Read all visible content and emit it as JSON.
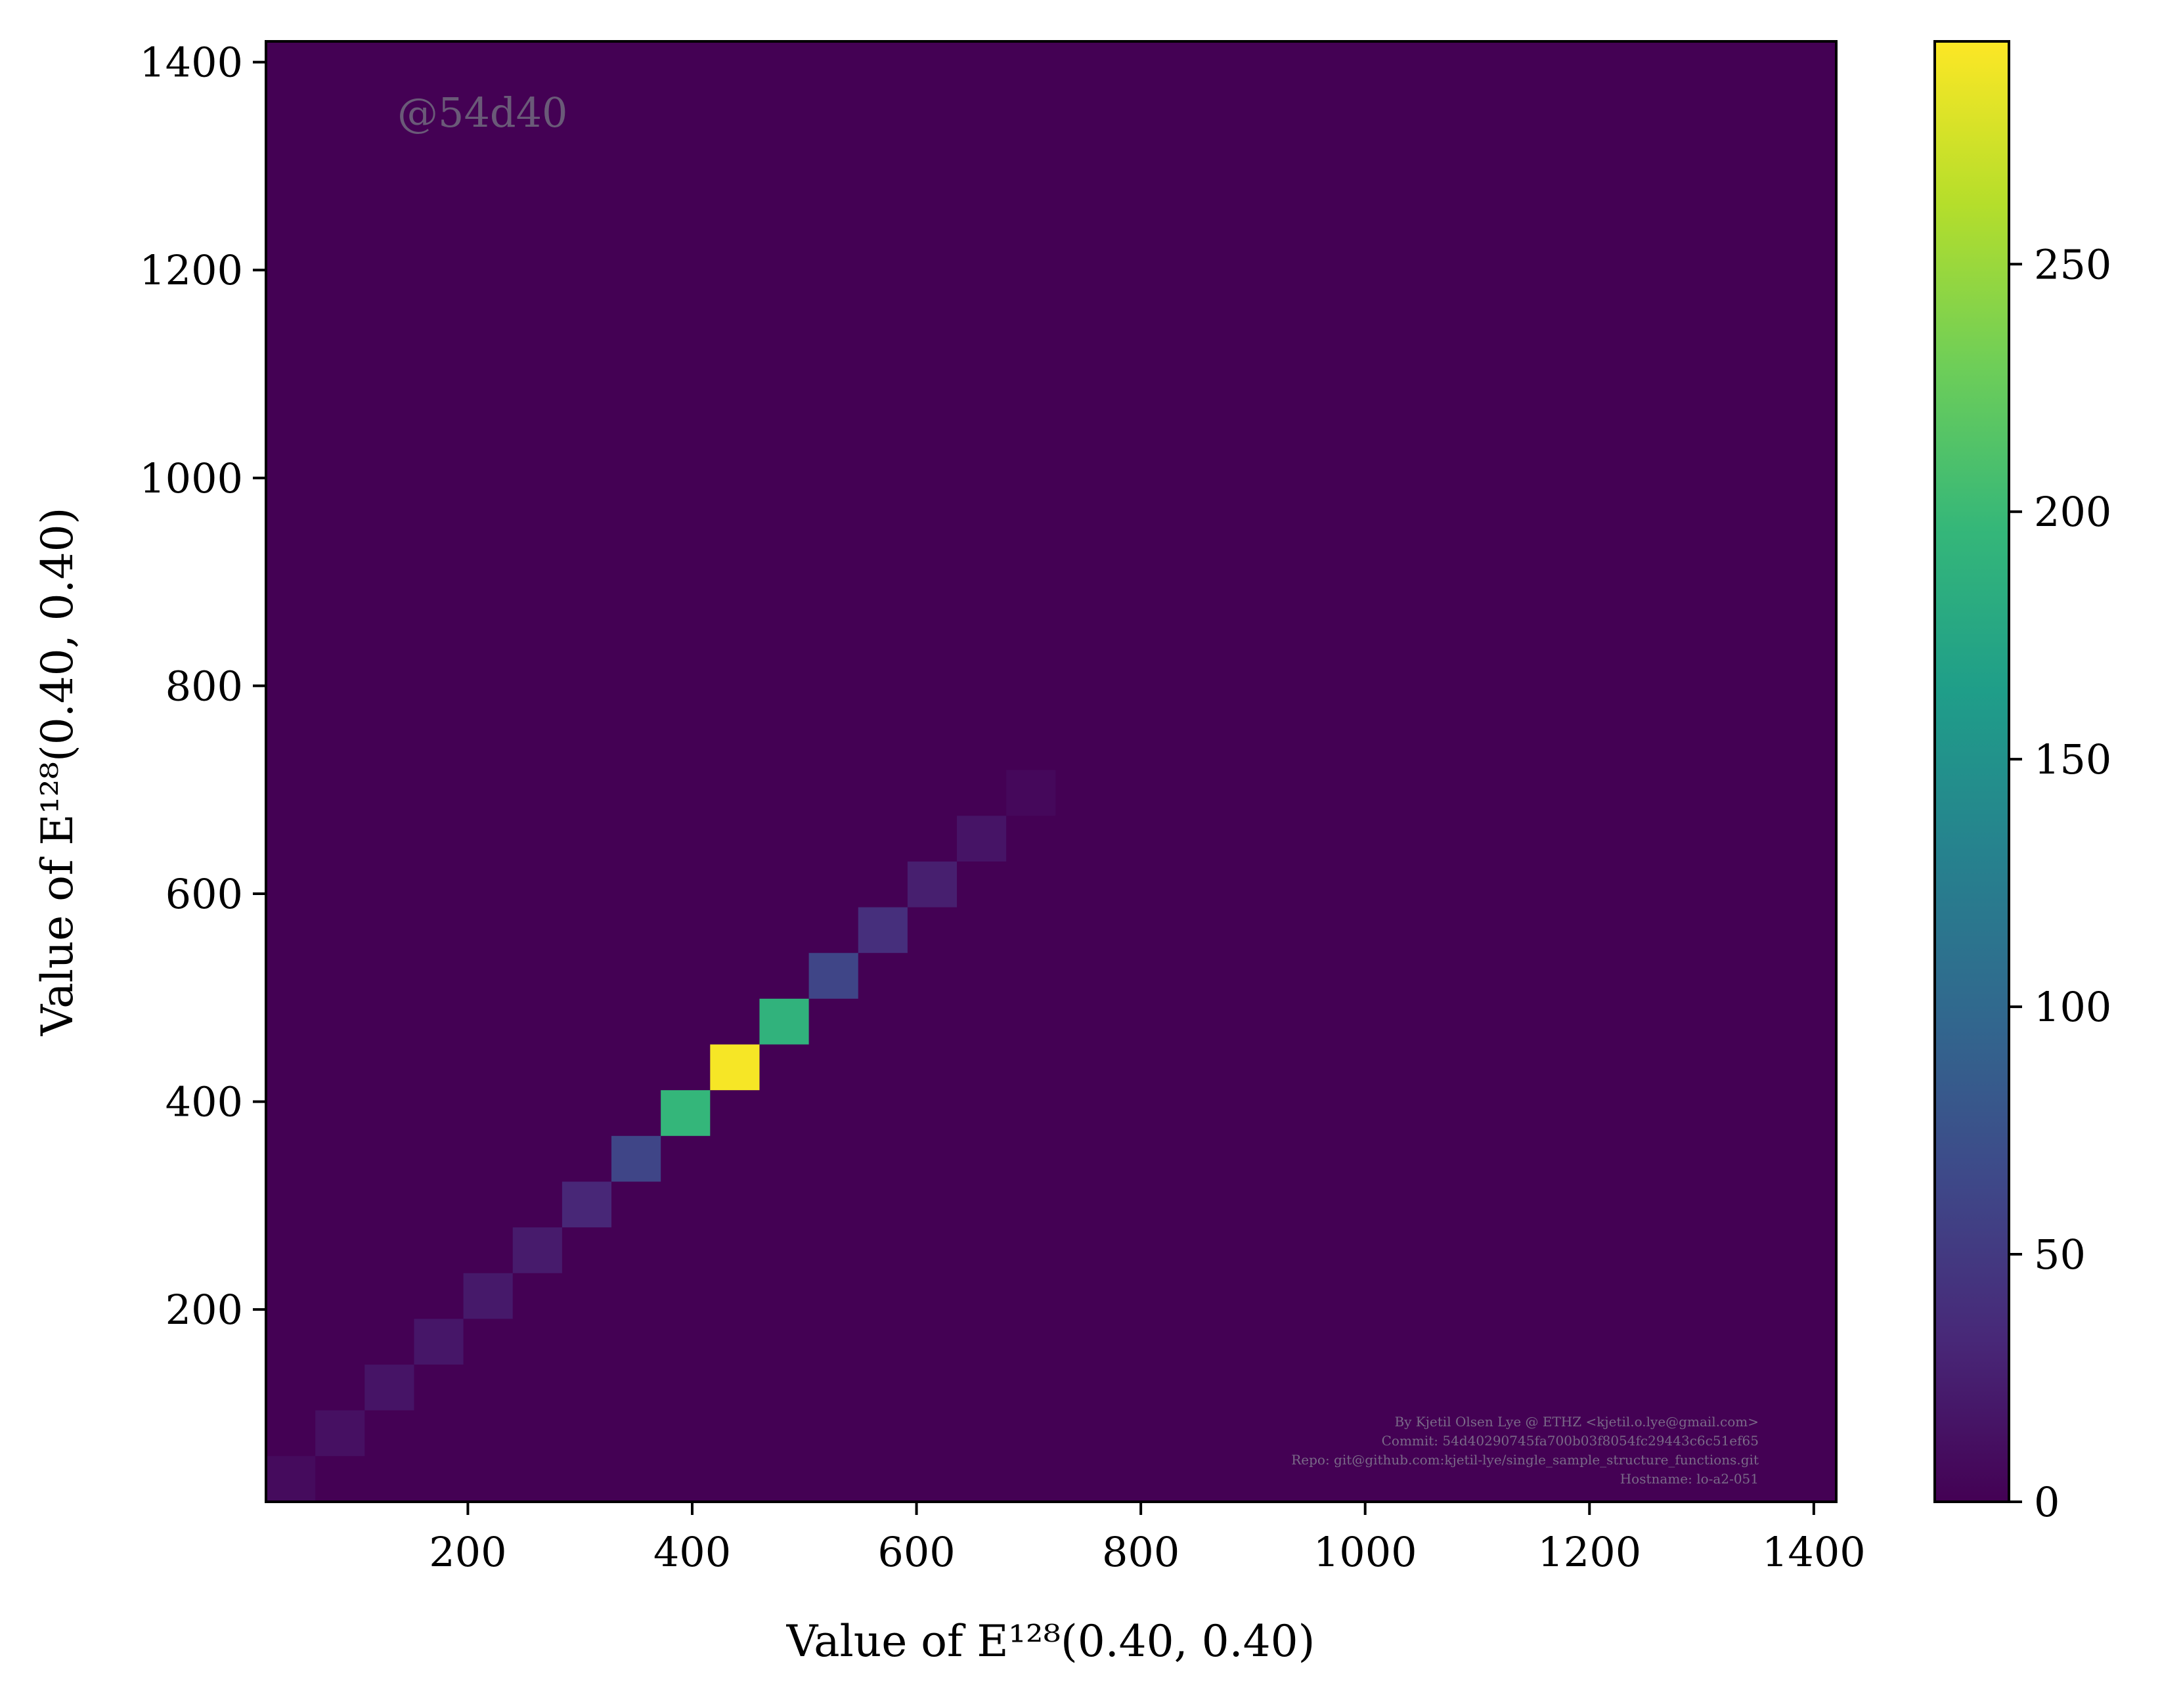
{
  "chart_data": {
    "type": "heatmap",
    "title": "",
    "xlabel": "Value of E¹²⁸(0.40, 0.40)",
    "ylabel": "Value of E¹²⁸(0.40, 0.40)",
    "xlim": [
      20,
      1420
    ],
    "ylim": [
      15,
      1420
    ],
    "xticks": [
      200,
      400,
      600,
      800,
      1000,
      1200,
      1400
    ],
    "yticks": [
      200,
      400,
      600,
      800,
      1000,
      1200,
      1400
    ],
    "bin_width": 44,
    "colormap": "viridis",
    "background_value": 0,
    "cells": [
      {
        "x": 42,
        "y": 37,
        "value": 8
      },
      {
        "x": 86,
        "y": 81,
        "value": 13
      },
      {
        "x": 130,
        "y": 125,
        "value": 16
      },
      {
        "x": 174,
        "y": 169,
        "value": 18
      },
      {
        "x": 218,
        "y": 213,
        "value": 20
      },
      {
        "x": 262,
        "y": 257,
        "value": 22
      },
      {
        "x": 306,
        "y": 301,
        "value": 32
      },
      {
        "x": 350,
        "y": 345,
        "value": 62
      },
      {
        "x": 394,
        "y": 389,
        "value": 195
      },
      {
        "x": 438,
        "y": 433,
        "value": 292
      },
      {
        "x": 482,
        "y": 477,
        "value": 190
      },
      {
        "x": 526,
        "y": 521,
        "value": 62
      },
      {
        "x": 570,
        "y": 565,
        "value": 40
      },
      {
        "x": 614,
        "y": 609,
        "value": 25
      },
      {
        "x": 658,
        "y": 653,
        "value": 16
      },
      {
        "x": 702,
        "y": 697,
        "value": 6
      }
    ],
    "colorbar": {
      "min": 0,
      "max": 295,
      "ticks": [
        0,
        50,
        100,
        150,
        200,
        250
      ],
      "colors": [
        "#440154",
        "#482878",
        "#3e4989",
        "#31688e",
        "#26828e",
        "#1f9e89",
        "#35b779",
        "#6ece58",
        "#b5de2b",
        "#fde725"
      ]
    },
    "watermark": "@54d40",
    "footer_lines": [
      "By Kjetil Olsen Lye @ ETHZ <kjetil.o.lye@gmail.com>",
      "Commit: 54d40290745fa700b03f8054fc29443c6c51ef65",
      "Repo: git@github.com:kjetil-lye/single_sample_structure_functions.git",
      "Hostname: lo-a2-051"
    ]
  }
}
